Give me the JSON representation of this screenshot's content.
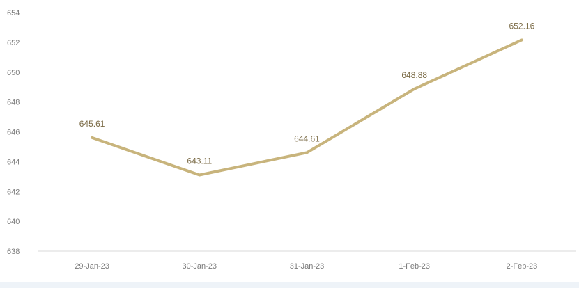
{
  "chart_data": {
    "type": "line",
    "title": "",
    "xlabel": "",
    "ylabel": "",
    "categories": [
      "29-Jan-23",
      "30-Jan-23",
      "31-Jan-23",
      "1-Feb-23",
      "2-Feb-23"
    ],
    "series": [
      {
        "values": [
          645.61,
          643.11,
          644.61,
          648.88,
          652.16
        ],
        "data_labels": [
          "645.61",
          "643.11",
          "644.61",
          "648.88",
          "652.16"
        ]
      }
    ],
    "ylim": [
      638,
      654
    ],
    "y_ticks": [
      638,
      640,
      642,
      644,
      646,
      648,
      650,
      652,
      654
    ],
    "y_tick_labels": [
      "638",
      "640",
      "642",
      "644",
      "646",
      "648",
      "650",
      "652",
      "654"
    ],
    "grid": false,
    "legend": "none",
    "line_color": "#c8b47c",
    "label_color": "#7a6a45",
    "tick_color": "#7a7a7a",
    "axis_color": "#d9d9d9"
  }
}
